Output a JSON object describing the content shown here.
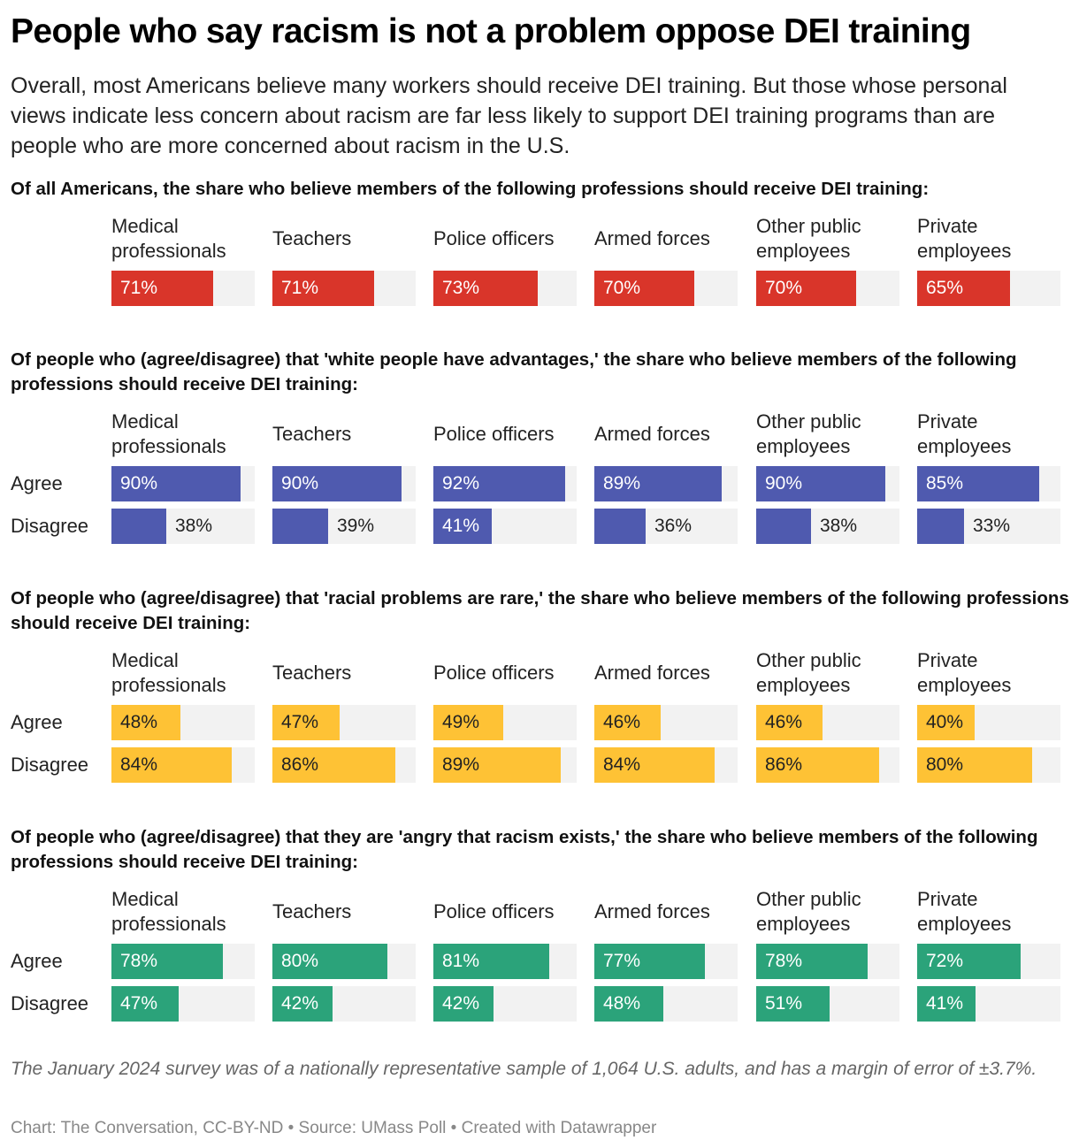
{
  "header": {
    "title": "People who say racism is not a problem oppose DEI training",
    "intro": "Overall, most Americans believe many workers should receive DEI training. But those whose personal views indicate less concern about racism are far less likely to support DEI training programs than are people who are more concerned about racism in the U.S."
  },
  "footer": {
    "notes": "The January 2024 survey was of a nationally representative sample of 1,064 U.S. adults, and has a margin of error of ±3.7%.",
    "credits": "Chart: The Conversation, CC-BY-ND • Source: UMass Poll • Created with Datawrapper"
  },
  "colors": {
    "red": "#d9352a",
    "blue": "#4f5aaf",
    "yellow": "#fec235",
    "green": "#2ba37a",
    "track": "#f2f2f2",
    "label_light": "#ffffff",
    "label_dark": "#222222"
  },
  "chart_data": {
    "type": "bar",
    "subtype": "small-multiples horizontal bars",
    "xlim": [
      0,
      100
    ],
    "unit": "%",
    "categories": [
      "Medical professionals",
      "Teachers",
      "Police officers",
      "Armed forces",
      "Other public employees",
      "Private employees"
    ],
    "category_labels": [
      [
        "Medical",
        "professionals"
      ],
      [
        "Teachers"
      ],
      [
        "Police officers"
      ],
      [
        "Armed forces"
      ],
      [
        "Other public",
        "employees"
      ],
      [
        "Private",
        "employees"
      ]
    ],
    "panels": [
      {
        "title": "Of all Americans, the share who believe members of the following professions should receive DEI training:",
        "color": "red",
        "series": [
          {
            "name": "",
            "values": [
              71,
              71,
              73,
              70,
              70,
              65
            ]
          }
        ]
      },
      {
        "title": "Of people who (agree/disagree) that 'white people have advantages,' the share who believe members of the following professions should receive DEI training:",
        "color": "blue",
        "series": [
          {
            "name": "Agree",
            "values": [
              90,
              90,
              92,
              89,
              90,
              85
            ]
          },
          {
            "name": "Disagree",
            "values": [
              38,
              39,
              41,
              36,
              38,
              33
            ]
          }
        ]
      },
      {
        "title": "Of people who (agree/disagree) that 'racial problems are rare,' the share who believe members of the following professions should receive DEI training:",
        "color": "yellow",
        "series": [
          {
            "name": "Agree",
            "values": [
              48,
              47,
              49,
              46,
              46,
              40
            ]
          },
          {
            "name": "Disagree",
            "values": [
              84,
              86,
              89,
              84,
              86,
              80
            ]
          }
        ]
      },
      {
        "title": "Of people who (agree/disagree) that they are 'angry that racism exists,' the share who believe members of the following professions should receive DEI training:",
        "color": "green",
        "series": [
          {
            "name": "Agree",
            "values": [
              78,
              80,
              81,
              77,
              78,
              72
            ]
          },
          {
            "name": "Disagree",
            "values": [
              47,
              42,
              42,
              48,
              51,
              41
            ]
          }
        ]
      }
    ]
  }
}
